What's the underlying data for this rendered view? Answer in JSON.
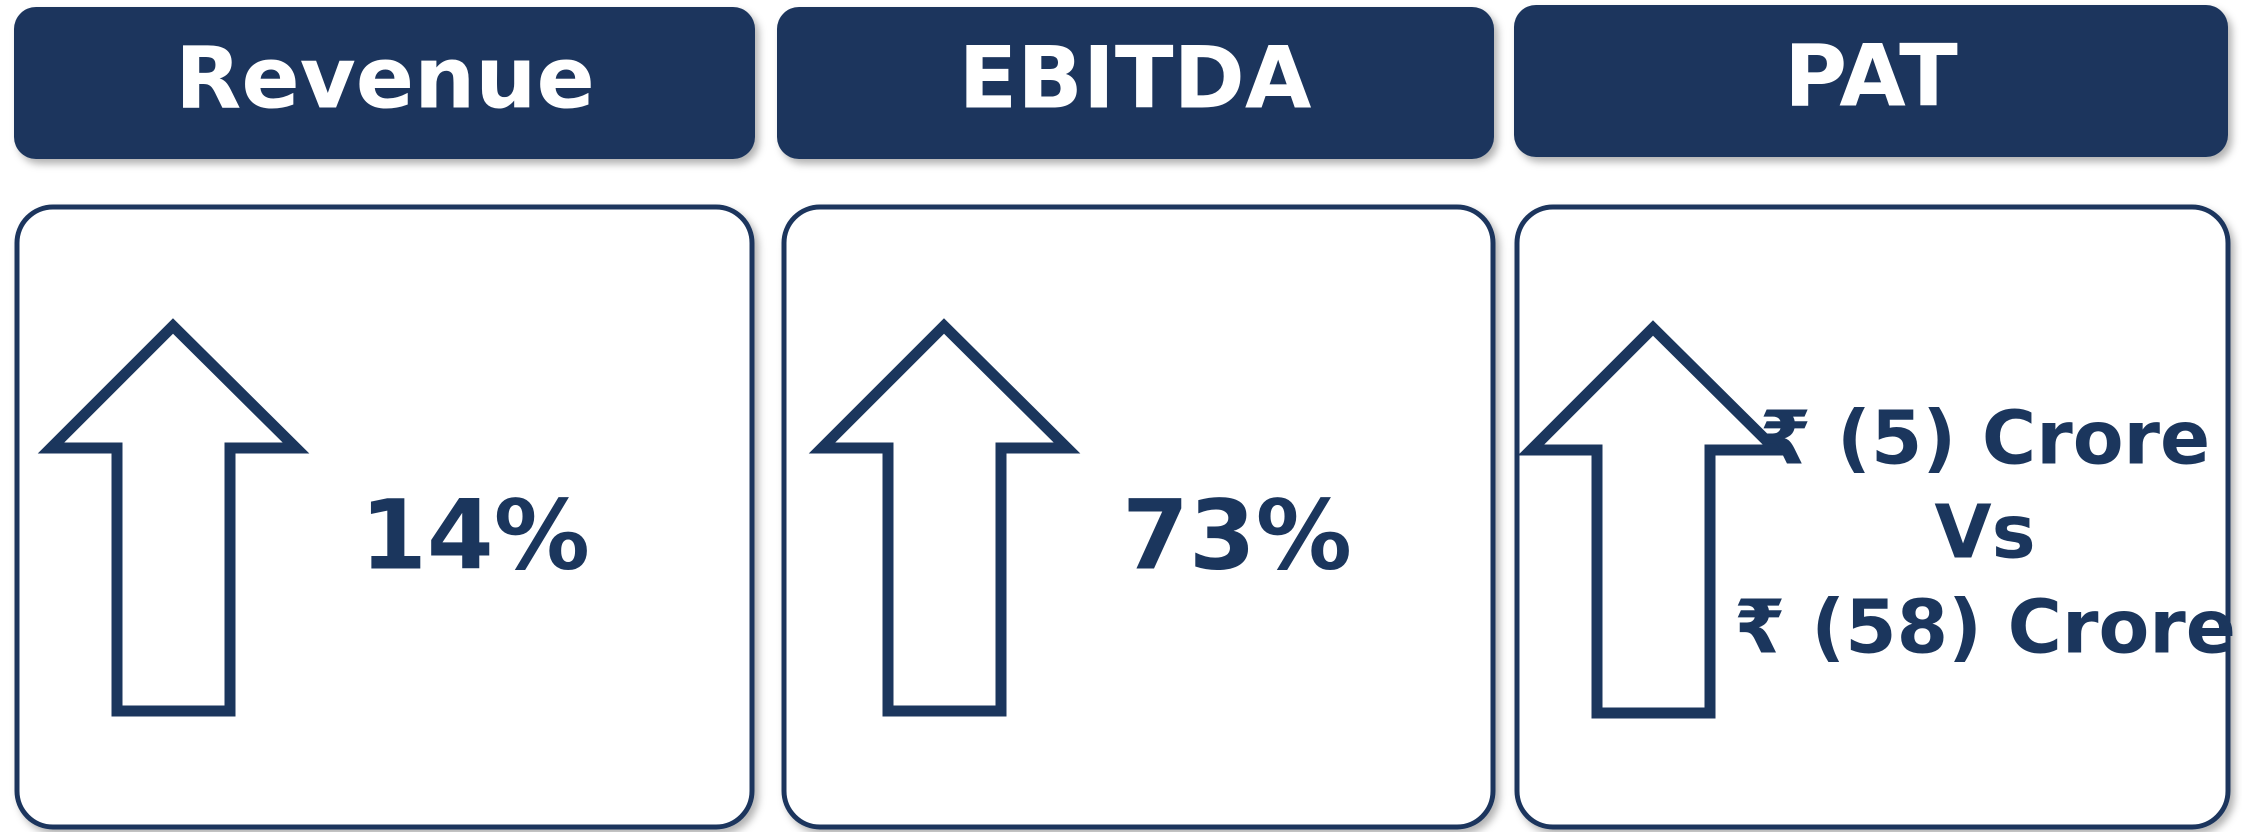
{
  "panels": [
    {
      "title": "Revenue",
      "value": "14%"
    },
    {
      "title": "EBITDA",
      "value": "73%"
    },
    {
      "title": "PAT",
      "lines": [
        "₹ (5) Crore",
        "Vs",
        "₹ (58) Crore"
      ]
    }
  ]
}
